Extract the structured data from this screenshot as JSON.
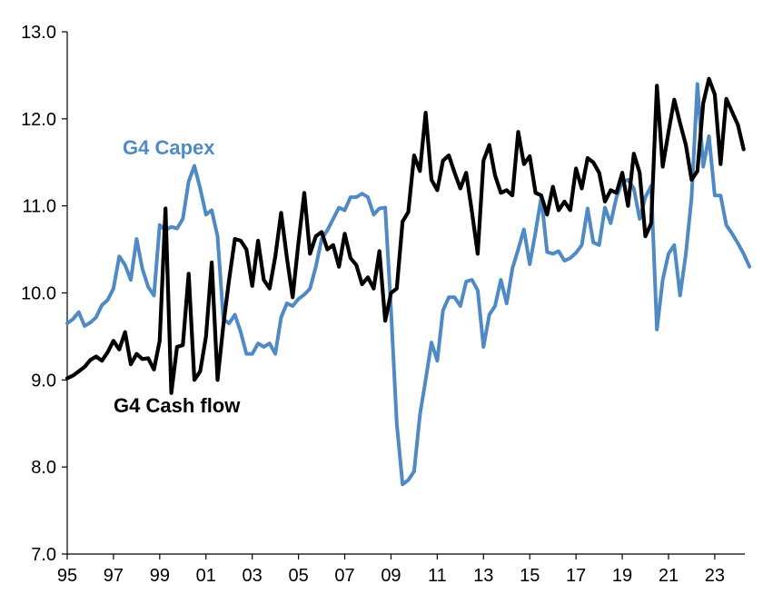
{
  "chart_data": {
    "type": "line",
    "title": "",
    "xlabel": "",
    "ylabel": "",
    "ylim": [
      7.0,
      13.0
    ],
    "yticks": [
      "7.0",
      "8.0",
      "9.0",
      "10.0",
      "11.0",
      "12.0",
      "13.0"
    ],
    "xlim": [
      1995.0,
      2024.3
    ],
    "xticks": [
      {
        "x": 1995,
        "label": "95"
      },
      {
        "x": 1997,
        "label": "97"
      },
      {
        "x": 1999,
        "label": "99"
      },
      {
        "x": 2001,
        "label": "01"
      },
      {
        "x": 2003,
        "label": "03"
      },
      {
        "x": 2005,
        "label": "05"
      },
      {
        "x": 2007,
        "label": "07"
      },
      {
        "x": 2009,
        "label": "09"
      },
      {
        "x": 2011,
        "label": "11"
      },
      {
        "x": 2013,
        "label": "13"
      },
      {
        "x": 2015,
        "label": "15"
      },
      {
        "x": 2017,
        "label": "17"
      },
      {
        "x": 2019,
        "label": "19"
      },
      {
        "x": 2021,
        "label": "21"
      },
      {
        "x": 2023,
        "label": "23"
      }
    ],
    "grid": false,
    "series": [
      {
        "name": "G4 Capex",
        "color": "#4f8ac5",
        "points": [
          [
            1995.0,
            9.65
          ],
          [
            1995.25,
            9.7
          ],
          [
            1995.5,
            9.78
          ],
          [
            1995.75,
            9.62
          ],
          [
            1996.0,
            9.66
          ],
          [
            1996.25,
            9.72
          ],
          [
            1996.5,
            9.86
          ],
          [
            1996.75,
            9.92
          ],
          [
            1997.0,
            10.05
          ],
          [
            1997.25,
            10.42
          ],
          [
            1997.5,
            10.32
          ],
          [
            1997.75,
            10.15
          ],
          [
            1998.0,
            10.62
          ],
          [
            1998.25,
            10.28
          ],
          [
            1998.5,
            10.07
          ],
          [
            1998.75,
            9.97
          ],
          [
            1999.0,
            10.78
          ],
          [
            1999.25,
            10.72
          ],
          [
            1999.5,
            10.76
          ],
          [
            1999.75,
            10.74
          ],
          [
            2000.0,
            10.85
          ],
          [
            2000.25,
            11.28
          ],
          [
            2000.5,
            11.46
          ],
          [
            2000.75,
            11.2
          ],
          [
            2001.0,
            10.9
          ],
          [
            2001.25,
            10.95
          ],
          [
            2001.5,
            10.65
          ],
          [
            2001.75,
            9.7
          ],
          [
            2002.0,
            9.65
          ],
          [
            2002.25,
            9.75
          ],
          [
            2002.5,
            9.55
          ],
          [
            2002.75,
            9.3
          ],
          [
            2003.0,
            9.3
          ],
          [
            2003.25,
            9.42
          ],
          [
            2003.5,
            9.38
          ],
          [
            2003.75,
            9.42
          ],
          [
            2004.0,
            9.3
          ],
          [
            2004.25,
            9.72
          ],
          [
            2004.5,
            9.88
          ],
          [
            2004.75,
            9.85
          ],
          [
            2005.0,
            9.93
          ],
          [
            2005.25,
            9.98
          ],
          [
            2005.5,
            10.05
          ],
          [
            2005.75,
            10.3
          ],
          [
            2006.0,
            10.62
          ],
          [
            2006.25,
            10.72
          ],
          [
            2006.5,
            10.85
          ],
          [
            2006.75,
            10.98
          ],
          [
            2007.0,
            10.95
          ],
          [
            2007.25,
            11.1
          ],
          [
            2007.5,
            11.1
          ],
          [
            2007.75,
            11.14
          ],
          [
            2008.0,
            11.1
          ],
          [
            2008.25,
            10.9
          ],
          [
            2008.5,
            10.97
          ],
          [
            2008.75,
            10.98
          ],
          [
            2009.0,
            9.8
          ],
          [
            2009.25,
            8.5
          ],
          [
            2009.5,
            7.8
          ],
          [
            2009.75,
            7.85
          ],
          [
            2010.0,
            7.95
          ],
          [
            2010.25,
            8.6
          ],
          [
            2010.5,
            9.0
          ],
          [
            2010.75,
            9.43
          ],
          [
            2011.0,
            9.22
          ],
          [
            2011.25,
            9.8
          ],
          [
            2011.5,
            9.95
          ],
          [
            2011.75,
            9.95
          ],
          [
            2012.0,
            9.85
          ],
          [
            2012.25,
            10.13
          ],
          [
            2012.5,
            10.15
          ],
          [
            2012.75,
            10.03
          ],
          [
            2013.0,
            9.38
          ],
          [
            2013.25,
            9.75
          ],
          [
            2013.5,
            9.85
          ],
          [
            2013.75,
            10.15
          ],
          [
            2014.0,
            9.88
          ],
          [
            2014.25,
            10.28
          ],
          [
            2014.5,
            10.5
          ],
          [
            2014.75,
            10.73
          ],
          [
            2015.0,
            10.33
          ],
          [
            2015.25,
            10.7
          ],
          [
            2015.5,
            11.1
          ],
          [
            2015.75,
            10.47
          ],
          [
            2016.0,
            10.45
          ],
          [
            2016.25,
            10.48
          ],
          [
            2016.5,
            10.37
          ],
          [
            2016.75,
            10.4
          ],
          [
            2017.0,
            10.46
          ],
          [
            2017.25,
            10.55
          ],
          [
            2017.5,
            10.97
          ],
          [
            2017.75,
            10.58
          ],
          [
            2018.0,
            10.55
          ],
          [
            2018.25,
            10.98
          ],
          [
            2018.5,
            10.8
          ],
          [
            2018.75,
            11.1
          ],
          [
            2019.0,
            11.28
          ],
          [
            2019.25,
            11.3
          ],
          [
            2019.5,
            11.2
          ],
          [
            2019.75,
            10.85
          ],
          [
            2020.0,
            11.1
          ],
          [
            2020.25,
            11.23
          ],
          [
            2020.5,
            9.58
          ],
          [
            2020.75,
            10.15
          ],
          [
            2021.0,
            10.45
          ],
          [
            2021.25,
            10.55
          ],
          [
            2021.5,
            9.97
          ],
          [
            2021.75,
            10.45
          ],
          [
            2022.0,
            11.1
          ],
          [
            2022.25,
            12.4
          ],
          [
            2022.5,
            11.45
          ],
          [
            2022.75,
            11.8
          ],
          [
            2023.0,
            11.12
          ],
          [
            2023.25,
            11.12
          ],
          [
            2023.5,
            10.78
          ],
          [
            2023.75,
            10.68
          ],
          [
            2024.0,
            10.57
          ],
          [
            2024.25,
            10.45
          ],
          [
            2024.5,
            10.3
          ]
        ]
      },
      {
        "name": "G4 Cash flow",
        "color": "#000000",
        "points": [
          [
            1995.0,
            9.02
          ],
          [
            1995.25,
            9.05
          ],
          [
            1995.5,
            9.1
          ],
          [
            1995.75,
            9.15
          ],
          [
            1996.0,
            9.23
          ],
          [
            1996.25,
            9.27
          ],
          [
            1996.5,
            9.22
          ],
          [
            1996.75,
            9.32
          ],
          [
            1997.0,
            9.45
          ],
          [
            1997.25,
            9.35
          ],
          [
            1997.5,
            9.55
          ],
          [
            1997.75,
            9.18
          ],
          [
            1998.0,
            9.3
          ],
          [
            1998.25,
            9.24
          ],
          [
            1998.5,
            9.25
          ],
          [
            1998.75,
            9.12
          ],
          [
            1999.0,
            9.45
          ],
          [
            1999.25,
            10.97
          ],
          [
            1999.5,
            8.85
          ],
          [
            1999.75,
            9.38
          ],
          [
            2000.0,
            9.4
          ],
          [
            2000.25,
            10.22
          ],
          [
            2000.5,
            9.0
          ],
          [
            2000.75,
            9.1
          ],
          [
            2001.0,
            9.5
          ],
          [
            2001.25,
            10.35
          ],
          [
            2001.5,
            9.0
          ],
          [
            2001.75,
            9.63
          ],
          [
            2002.0,
            10.15
          ],
          [
            2002.25,
            10.62
          ],
          [
            2002.5,
            10.6
          ],
          [
            2002.75,
            10.5
          ],
          [
            2003.0,
            10.08
          ],
          [
            2003.25,
            10.6
          ],
          [
            2003.5,
            10.15
          ],
          [
            2003.75,
            10.05
          ],
          [
            2004.0,
            10.42
          ],
          [
            2004.25,
            10.92
          ],
          [
            2004.5,
            10.4
          ],
          [
            2004.75,
            9.95
          ],
          [
            2005.0,
            10.58
          ],
          [
            2005.25,
            11.15
          ],
          [
            2005.5,
            10.45
          ],
          [
            2005.75,
            10.65
          ],
          [
            2006.0,
            10.7
          ],
          [
            2006.25,
            10.5
          ],
          [
            2006.5,
            10.55
          ],
          [
            2006.75,
            10.3
          ],
          [
            2007.0,
            10.68
          ],
          [
            2007.25,
            10.4
          ],
          [
            2007.5,
            10.32
          ],
          [
            2007.75,
            10.1
          ],
          [
            2008.0,
            10.18
          ],
          [
            2008.25,
            10.05
          ],
          [
            2008.5,
            10.48
          ],
          [
            2008.75,
            9.68
          ],
          [
            2009.0,
            10.0
          ],
          [
            2009.25,
            10.05
          ],
          [
            2009.5,
            10.82
          ],
          [
            2009.75,
            10.93
          ],
          [
            2010.0,
            11.58
          ],
          [
            2010.25,
            11.4
          ],
          [
            2010.5,
            12.07
          ],
          [
            2010.75,
            11.3
          ],
          [
            2011.0,
            11.18
          ],
          [
            2011.25,
            11.52
          ],
          [
            2011.5,
            11.58
          ],
          [
            2011.75,
            11.38
          ],
          [
            2012.0,
            11.2
          ],
          [
            2012.25,
            11.38
          ],
          [
            2012.5,
            10.93
          ],
          [
            2012.75,
            10.45
          ],
          [
            2013.0,
            11.52
          ],
          [
            2013.25,
            11.7
          ],
          [
            2013.5,
            11.35
          ],
          [
            2013.75,
            11.15
          ],
          [
            2014.0,
            11.18
          ],
          [
            2014.25,
            11.12
          ],
          [
            2014.5,
            11.85
          ],
          [
            2014.75,
            11.48
          ],
          [
            2015.0,
            11.57
          ],
          [
            2015.25,
            11.15
          ],
          [
            2015.5,
            11.12
          ],
          [
            2015.75,
            10.9
          ],
          [
            2016.0,
            11.22
          ],
          [
            2016.25,
            10.95
          ],
          [
            2016.5,
            11.05
          ],
          [
            2016.75,
            10.95
          ],
          [
            2017.0,
            11.43
          ],
          [
            2017.25,
            11.2
          ],
          [
            2017.5,
            11.55
          ],
          [
            2017.75,
            11.5
          ],
          [
            2018.0,
            11.38
          ],
          [
            2018.25,
            11.05
          ],
          [
            2018.5,
            11.18
          ],
          [
            2018.75,
            11.15
          ],
          [
            2019.0,
            11.38
          ],
          [
            2019.25,
            11.0
          ],
          [
            2019.5,
            11.6
          ],
          [
            2019.75,
            11.38
          ],
          [
            2020.0,
            10.65
          ],
          [
            2020.25,
            10.8
          ],
          [
            2020.5,
            12.38
          ],
          [
            2020.75,
            11.45
          ],
          [
            2021.0,
            11.85
          ],
          [
            2021.25,
            12.22
          ],
          [
            2021.5,
            11.95
          ],
          [
            2021.75,
            11.7
          ],
          [
            2022.0,
            11.3
          ],
          [
            2022.25,
            11.4
          ],
          [
            2022.5,
            12.18
          ],
          [
            2022.75,
            12.46
          ],
          [
            2023.0,
            12.28
          ],
          [
            2023.25,
            11.48
          ],
          [
            2023.5,
            12.23
          ],
          [
            2023.75,
            12.08
          ],
          [
            2024.0,
            11.93
          ],
          [
            2024.25,
            11.65
          ]
        ]
      }
    ]
  }
}
